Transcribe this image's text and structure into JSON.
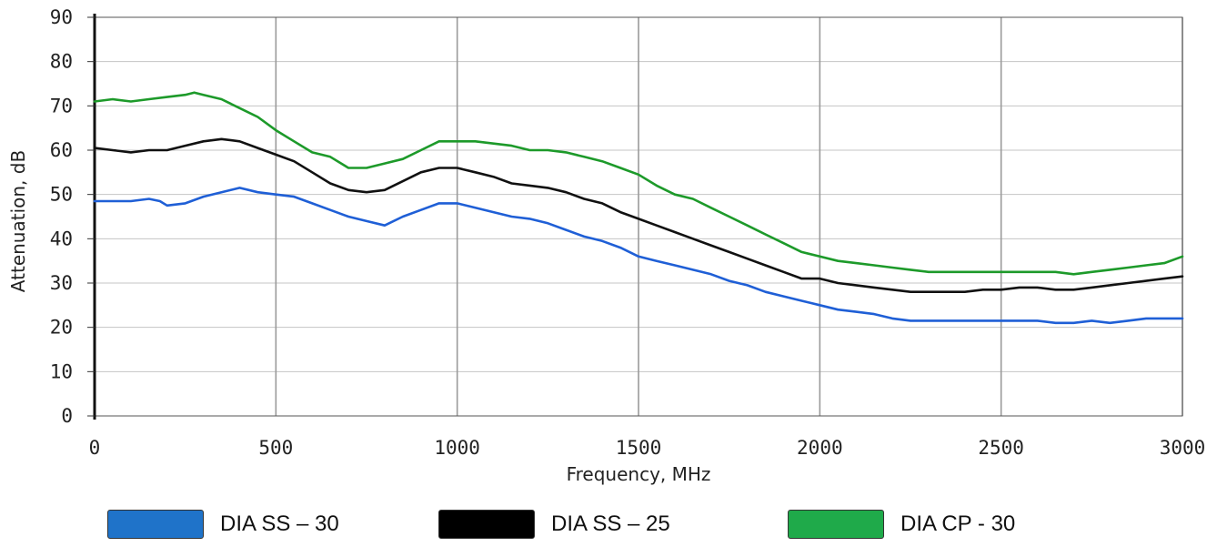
{
  "chart_data": {
    "type": "line",
    "xlabel": "Frequency, MHz",
    "ylabel": "Attenuation, dB",
    "xlim": [
      0,
      3000
    ],
    "ylim": [
      0,
      90
    ],
    "xticks": [
      0,
      500,
      1000,
      1500,
      2000,
      2500,
      3000
    ],
    "yticks": [
      0,
      10,
      20,
      30,
      40,
      50,
      60,
      70,
      80,
      90
    ],
    "grid": true,
    "legend_position": "bottom",
    "series": [
      {
        "name": "DIA SS – 30",
        "color": "#1f5fd6",
        "x": [
          0,
          50,
          100,
          150,
          180,
          200,
          250,
          300,
          350,
          400,
          450,
          500,
          550,
          600,
          650,
          700,
          750,
          800,
          850,
          900,
          950,
          1000,
          1050,
          1100,
          1150,
          1200,
          1250,
          1300,
          1350,
          1400,
          1450,
          1500,
          1550,
          1600,
          1650,
          1700,
          1750,
          1800,
          1850,
          1900,
          1950,
          2000,
          2050,
          2100,
          2150,
          2200,
          2250,
          2300,
          2350,
          2400,
          2450,
          2500,
          2550,
          2600,
          2650,
          2700,
          2750,
          2800,
          2850,
          2900,
          2950,
          3000
        ],
        "values": [
          48.5,
          48.5,
          48.5,
          49,
          48.5,
          47.5,
          48,
          49.5,
          50.5,
          51.5,
          50.5,
          50,
          49.5,
          48,
          46.5,
          45,
          44,
          43,
          45,
          46.5,
          48,
          48,
          47,
          46,
          45,
          44.5,
          43.5,
          42,
          40.5,
          39.5,
          38,
          36,
          35,
          34,
          33,
          32,
          30.5,
          29.5,
          28,
          27,
          26,
          25,
          24,
          23.5,
          23,
          22,
          21.5,
          21.5,
          21.5,
          21.5,
          21.5,
          21.5,
          21.5,
          21.5,
          21,
          21,
          21.5,
          21,
          21.5,
          22,
          22,
          22
        ]
      },
      {
        "name": "DIA SS – 25",
        "color": "#111111",
        "x": [
          0,
          50,
          100,
          150,
          200,
          250,
          300,
          350,
          400,
          450,
          500,
          550,
          600,
          650,
          700,
          750,
          800,
          850,
          900,
          950,
          1000,
          1050,
          1100,
          1150,
          1200,
          1250,
          1300,
          1350,
          1400,
          1450,
          1500,
          1550,
          1600,
          1650,
          1700,
          1750,
          1800,
          1850,
          1900,
          1950,
          2000,
          2050,
          2100,
          2150,
          2200,
          2250,
          2300,
          2350,
          2400,
          2450,
          2500,
          2550,
          2600,
          2650,
          2700,
          2750,
          2800,
          2850,
          2900,
          2950,
          3000
        ],
        "values": [
          60.5,
          60,
          59.5,
          60,
          60,
          61,
          62,
          62.5,
          62,
          60.5,
          59,
          57.5,
          55,
          52.5,
          51,
          50.5,
          51,
          53,
          55,
          56,
          56,
          55,
          54,
          52.5,
          52,
          51.5,
          50.5,
          49,
          48,
          46,
          44.5,
          43,
          41.5,
          40,
          38.5,
          37,
          35.5,
          34,
          32.5,
          31,
          31,
          30,
          29.5,
          29,
          28.5,
          28,
          28,
          28,
          28,
          28.5,
          28.5,
          29,
          29,
          28.5,
          28.5,
          29,
          29.5,
          30,
          30.5,
          31,
          31.5
        ]
      },
      {
        "name": "DIA CP - 30",
        "color": "#1d9a2a",
        "x": [
          0,
          50,
          100,
          150,
          200,
          250,
          275,
          300,
          350,
          400,
          450,
          500,
          550,
          600,
          650,
          700,
          750,
          800,
          850,
          900,
          950,
          1000,
          1050,
          1100,
          1150,
          1200,
          1250,
          1300,
          1350,
          1400,
          1450,
          1500,
          1550,
          1600,
          1650,
          1700,
          1750,
          1800,
          1850,
          1900,
          1950,
          2000,
          2050,
          2100,
          2150,
          2200,
          2250,
          2300,
          2350,
          2400,
          2450,
          2500,
          2550,
          2600,
          2650,
          2700,
          2750,
          2800,
          2850,
          2900,
          2950,
          3000
        ],
        "values": [
          71,
          71.5,
          71,
          71.5,
          72,
          72.5,
          73,
          72.5,
          71.5,
          69.5,
          67.5,
          64.5,
          62,
          59.5,
          58.5,
          56,
          56,
          57,
          58,
          60,
          62,
          62,
          62,
          61.5,
          61,
          60,
          60,
          59.5,
          58.5,
          57.5,
          56,
          54.5,
          52,
          50,
          49,
          47,
          45,
          43,
          41,
          39,
          37,
          36,
          35,
          34.5,
          34,
          33.5,
          33,
          32.5,
          32.5,
          32.5,
          32.5,
          32.5,
          32.5,
          32.5,
          32.5,
          32,
          32.5,
          33,
          33.5,
          34,
          34.5,
          36
        ]
      }
    ]
  }
}
